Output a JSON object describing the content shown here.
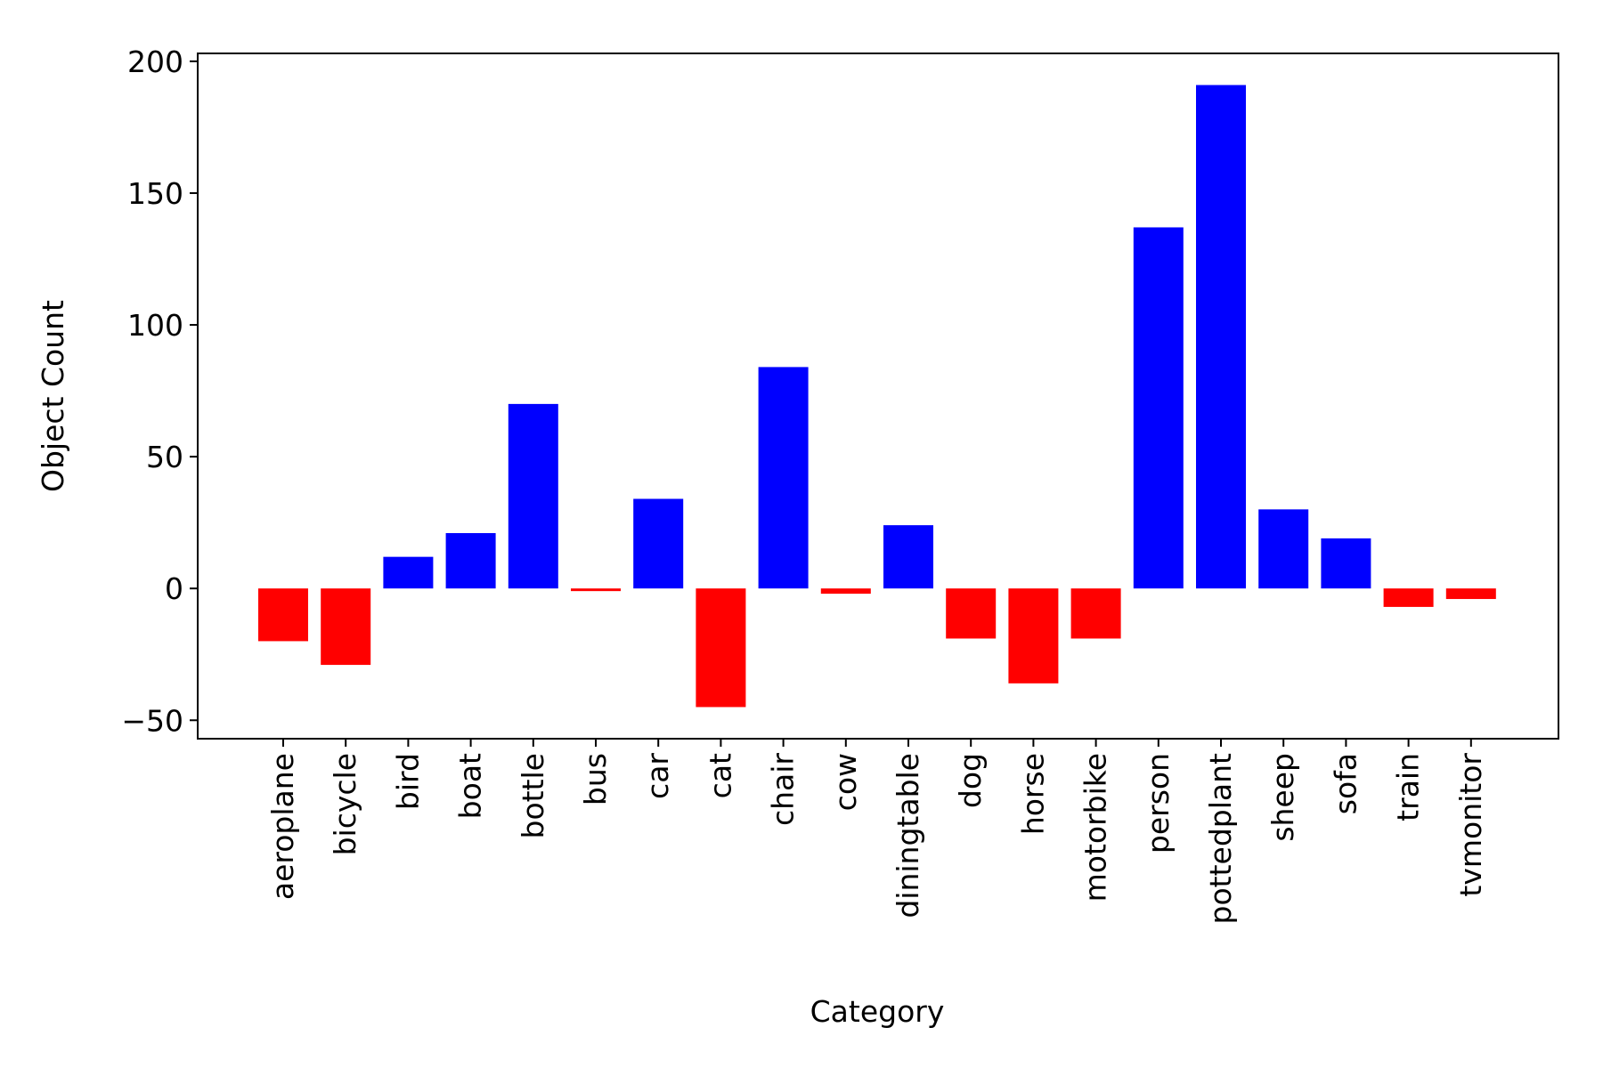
{
  "chart_data": {
    "type": "bar",
    "title": "",
    "xlabel": "Category",
    "ylabel": "Object Count",
    "categories": [
      "aeroplane",
      "bicycle",
      "bird",
      "boat",
      "bottle",
      "bus",
      "car",
      "cat",
      "chair",
      "cow",
      "diningtable",
      "dog",
      "horse",
      "motorbike",
      "person",
      "pottedplant",
      "sheep",
      "sofa",
      "train",
      "tvmonitor"
    ],
    "values": [
      -20,
      -29,
      12,
      21,
      70,
      -1,
      34,
      -45,
      84,
      -2,
      24,
      -19,
      -36,
      -19,
      137,
      191,
      30,
      19,
      -7,
      -4
    ],
    "ylim": [
      -57,
      203
    ],
    "yticks": [
      -50,
      0,
      50,
      100,
      150,
      200
    ],
    "ytick_labels": [
      "−50",
      "0",
      "50",
      "100",
      "150",
      "200"
    ],
    "colors": {
      "positive": "#0000ff",
      "negative": "#ff0000",
      "axis": "#000000"
    },
    "grid": false,
    "legend": "none"
  }
}
